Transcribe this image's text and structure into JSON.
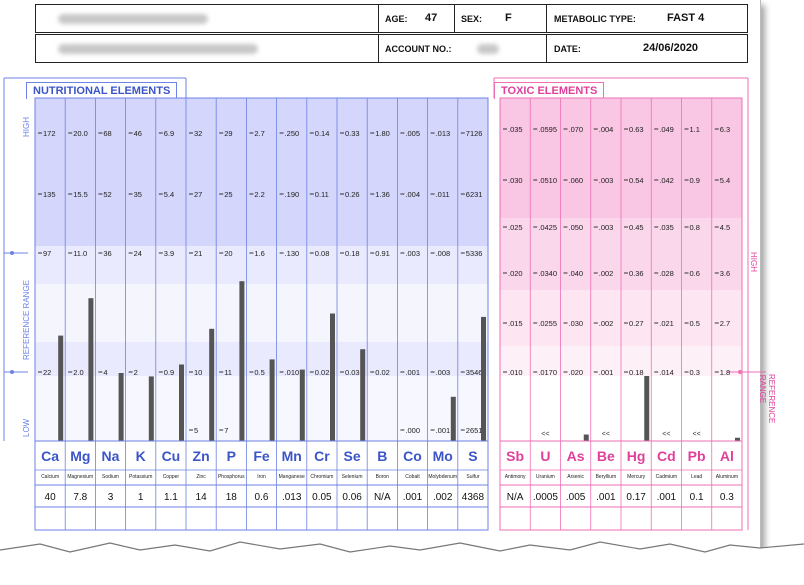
{
  "header": {
    "name_redacted": "",
    "age_label": "AGE:",
    "age": "47",
    "sex_label": "SEX:",
    "sex": "F",
    "metabolic_label": "METABOLIC TYPE:",
    "metabolic": "FAST 4",
    "account_label": "ACCOUNT NO.:",
    "date_label": "DATE:",
    "date": "24/06/2020"
  },
  "nutritional": {
    "title": "NUTRITIONAL  ELEMENTS",
    "side_labels": {
      "high": "HIGH",
      "reference": "REFERENCE  RANGE",
      "low": "LOW"
    },
    "elements": [
      {
        "symbol": "Ca",
        "name": "Calcium",
        "ticks": [
          "172",
          "135",
          "97",
          "22"
        ],
        "low_label": "",
        "result": "40",
        "level": 0.62
      },
      {
        "symbol": "Mg",
        "name": "Magnesium",
        "ticks": [
          "20.0",
          "15.5",
          "11.0",
          "2.0"
        ],
        "low_label": "",
        "result": "7.8",
        "level": 0.84
      },
      {
        "symbol": "Na",
        "name": "Sodium",
        "ticks": [
          "68",
          "52",
          "36",
          "4"
        ],
        "low_label": "",
        "result": "3",
        "level": 0.4
      },
      {
        "symbol": "K",
        "name": "Potassium",
        "ticks": [
          "46",
          "35",
          "24",
          "2"
        ],
        "low_label": "",
        "result": "1",
        "level": 0.38
      },
      {
        "symbol": "Cu",
        "name": "Copper",
        "ticks": [
          "6.9",
          "5.4",
          "3.9",
          "0.9"
        ],
        "low_label": "",
        "result": "1.1",
        "level": 0.45
      },
      {
        "symbol": "Zn",
        "name": "Zinc",
        "ticks": [
          "32",
          "27",
          "21",
          "10"
        ],
        "low_label": "5",
        "result": "14",
        "level": 0.66
      },
      {
        "symbol": "P",
        "name": "Phosphorus",
        "ticks": [
          "29",
          "25",
          "20",
          "11"
        ],
        "low_label": "7",
        "result": "18",
        "level": 0.94
      },
      {
        "symbol": "Fe",
        "name": "Iron",
        "ticks": [
          "2.7",
          "2.2",
          "1.6",
          "0.5"
        ],
        "low_label": "",
        "result": "0.6",
        "level": 0.48
      },
      {
        "symbol": "Mn",
        "name": "Manganese",
        "ticks": [
          ".250",
          ".190",
          ".130",
          ".010"
        ],
        "low_label": "",
        "result": ".013",
        "level": 0.42
      },
      {
        "symbol": "Cr",
        "name": "Chromium",
        "ticks": [
          "0.14",
          "0.11",
          "0.08",
          "0.02"
        ],
        "low_label": "",
        "result": "0.05",
        "level": 0.75
      },
      {
        "symbol": "Se",
        "name": "Selenium",
        "ticks": [
          "0.33",
          "0.26",
          "0.18",
          "0.03"
        ],
        "low_label": "",
        "result": "0.06",
        "level": 0.54
      },
      {
        "symbol": "B",
        "name": "Boron",
        "ticks": [
          "1.80",
          "1.36",
          "0.91",
          "0.02"
        ],
        "low_label": "",
        "result": "N/A",
        "level": 0
      },
      {
        "symbol": "Co",
        "name": "Cobalt",
        "ticks": [
          ".005",
          ".004",
          ".003",
          ".001"
        ],
        "low_label": ".000",
        "result": ".001",
        "level": 0
      },
      {
        "symbol": "Mo",
        "name": "Molybdenum",
        "ticks": [
          ".013",
          ".011",
          ".008",
          ".003"
        ],
        "low_label": ".001",
        "result": ".002",
        "level": 0.26
      },
      {
        "symbol": "S",
        "name": "Sulfur",
        "ticks": [
          "7126",
          "6231",
          "5336",
          "3546"
        ],
        "low_label": "2651",
        "result": "4368",
        "level": 0.73
      }
    ]
  },
  "toxic": {
    "title": "TOXIC  ELEMENTS",
    "side_labels": {
      "high": "HIGH",
      "reference": "REFERENCE RANGE"
    },
    "elements": [
      {
        "symbol": "Sb",
        "name": "Antimony",
        "ticks": [
          ".035",
          ".030",
          ".025",
          ".020",
          ".015",
          ".010"
        ],
        "mark": "",
        "result": "N/A",
        "level": 0
      },
      {
        "symbol": "U",
        "name": "Uranium",
        "ticks": [
          ".0595",
          ".0510",
          ".0425",
          ".0340",
          ".0255",
          ".0170"
        ],
        "mark": "<<",
        "result": ".0005",
        "level": 0
      },
      {
        "symbol": "As",
        "name": "Arsenic",
        "ticks": [
          ".070",
          ".060",
          ".050",
          ".040",
          ".030",
          ".020"
        ],
        "mark": "",
        "result": ".005",
        "level": 0.02
      },
      {
        "symbol": "Be",
        "name": "Beryllium",
        "ticks": [
          ".004",
          ".003",
          ".003",
          ".002",
          ".002",
          ".001"
        ],
        "mark": "<<",
        "result": ".001",
        "level": 0
      },
      {
        "symbol": "Hg",
        "name": "Mercury",
        "ticks": [
          "0.63",
          "0.54",
          "0.45",
          "0.36",
          "0.27",
          "0.18"
        ],
        "mark": "",
        "result": "0.17",
        "level": 0.2
      },
      {
        "symbol": "Cd",
        "name": "Cadmium",
        "ticks": [
          ".049",
          ".042",
          ".035",
          ".028",
          ".021",
          ".014"
        ],
        "mark": "<<",
        "result": ".001",
        "level": 0
      },
      {
        "symbol": "Pb",
        "name": "Lead",
        "ticks": [
          "1.1",
          "0.9",
          "0.8",
          "0.6",
          "0.5",
          "0.3"
        ],
        "mark": "<<",
        "result": "0.1",
        "level": 0
      },
      {
        "symbol": "Al",
        "name": "Aluminum",
        "ticks": [
          "6.3",
          "5.4",
          "4.5",
          "3.6",
          "2.7",
          "1.8"
        ],
        "mark": "",
        "result": "0.3",
        "level": 0.01
      }
    ]
  }
}
